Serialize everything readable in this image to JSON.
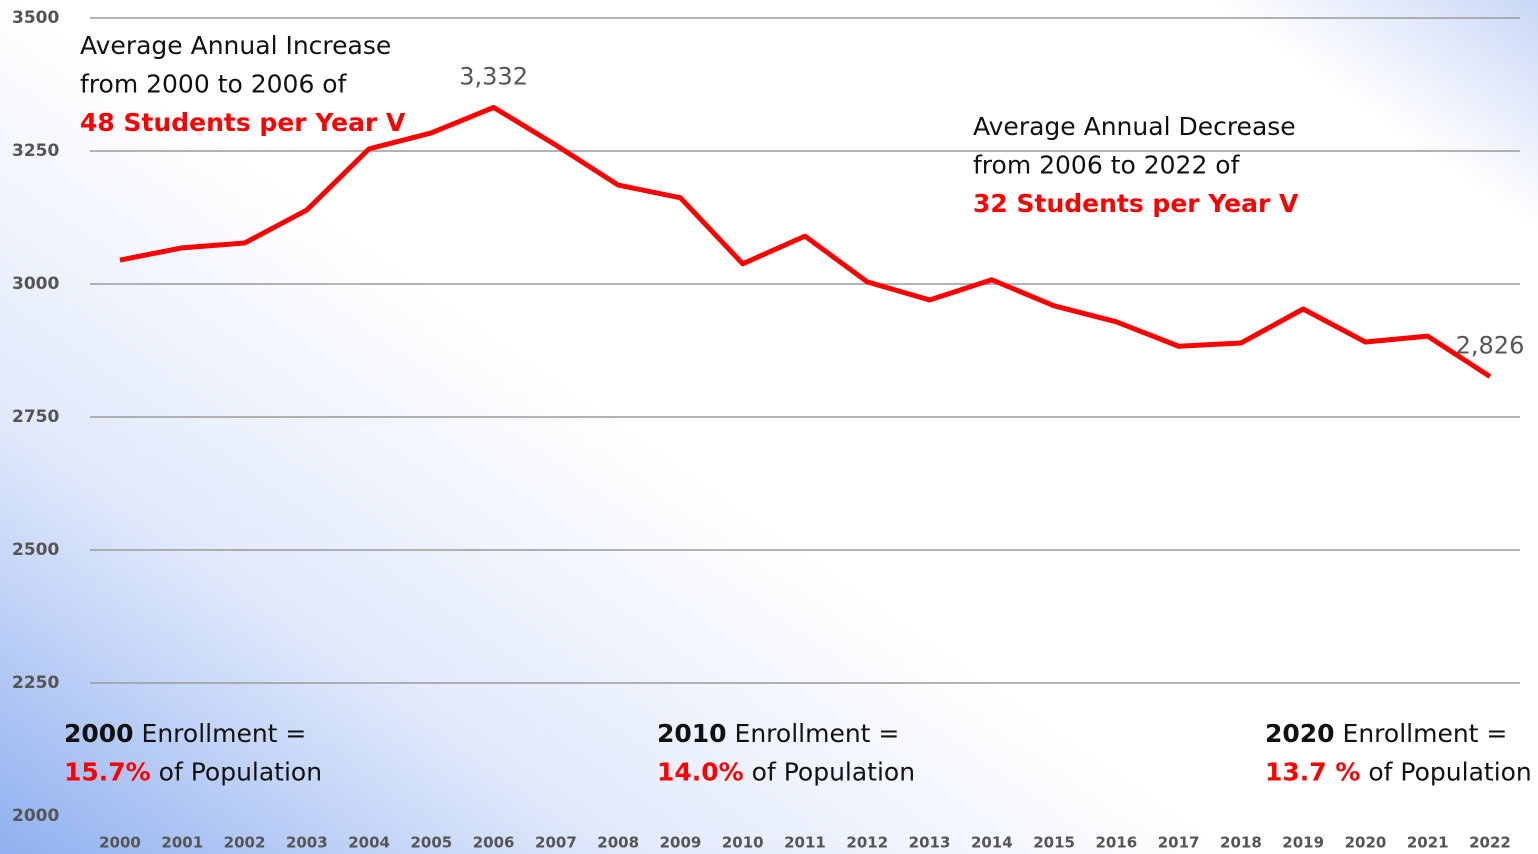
{
  "chart_data": {
    "type": "line",
    "categories": [
      "2000",
      "2001",
      "2002",
      "2003",
      "2004",
      "2005",
      "2006",
      "2007",
      "2008",
      "2009",
      "2010",
      "2011",
      "2012",
      "2013",
      "2014",
      "2015",
      "2016",
      "2017",
      "2018",
      "2019",
      "2020",
      "2021",
      "2022"
    ],
    "series": [
      {
        "name": null,
        "color": "#ff0000",
        "values": [
          3045,
          3068,
          3077,
          3139,
          3254,
          3284,
          3332,
          3261,
          3186,
          3162,
          3038,
          3090,
          3004,
          2970,
          3008,
          2959,
          2929,
          2883,
          2889,
          2953,
          2891,
          2902,
          2826
        ],
        "value_labels": [
          null,
          null,
          null,
          null,
          null,
          null,
          "3,332",
          null,
          null,
          null,
          null,
          null,
          null,
          null,
          null,
          null,
          null,
          null,
          null,
          null,
          null,
          null,
          "2,826"
        ]
      }
    ],
    "ylim": [
      2000,
      3500
    ],
    "yticks": [
      2000,
      2250,
      2500,
      2750,
      3000,
      3250,
      3500
    ],
    "grid": true,
    "annotations": [
      {
        "lines": [
          [
            {
              "text": "Average Annual Increase"
            }
          ],
          [
            {
              "text": "from 2000 to 2006 of"
            }
          ],
          [
            {
              "text": "48 Students per Year V",
              "bold": true,
              "color": "#ff0000"
            }
          ]
        ]
      },
      {
        "lines": [
          [
            {
              "text": "Average Annual Decrease"
            }
          ],
          [
            {
              "text": "from 2006 to 2022 of"
            }
          ],
          [
            {
              "text": "32 Students per Year V",
              "bold": true,
              "color": "#ff0000"
            }
          ]
        ]
      },
      {
        "lines": [
          [
            {
              "text": "2000",
              "bold": true
            },
            {
              "text": " Enrollment ="
            }
          ],
          [
            {
              "text": "15.7%",
              "bold": true,
              "color": "#ff0000"
            },
            {
              "text": " of Population"
            }
          ]
        ]
      },
      {
        "lines": [
          [
            {
              "text": "2010",
              "bold": true
            },
            {
              "text": " Enrollment ="
            }
          ],
          [
            {
              "text": "14.0%",
              "bold": true,
              "color": "#ff0000"
            },
            {
              "text": " of Population"
            }
          ]
        ]
      },
      {
        "lines": [
          [
            {
              "text": "2020",
              "bold": true
            },
            {
              "text": " Enrollment ="
            }
          ],
          [
            {
              "text": "13.7 %",
              "bold": true,
              "color": "#ff0000"
            },
            {
              "text": " of Population"
            }
          ]
        ]
      }
    ]
  }
}
